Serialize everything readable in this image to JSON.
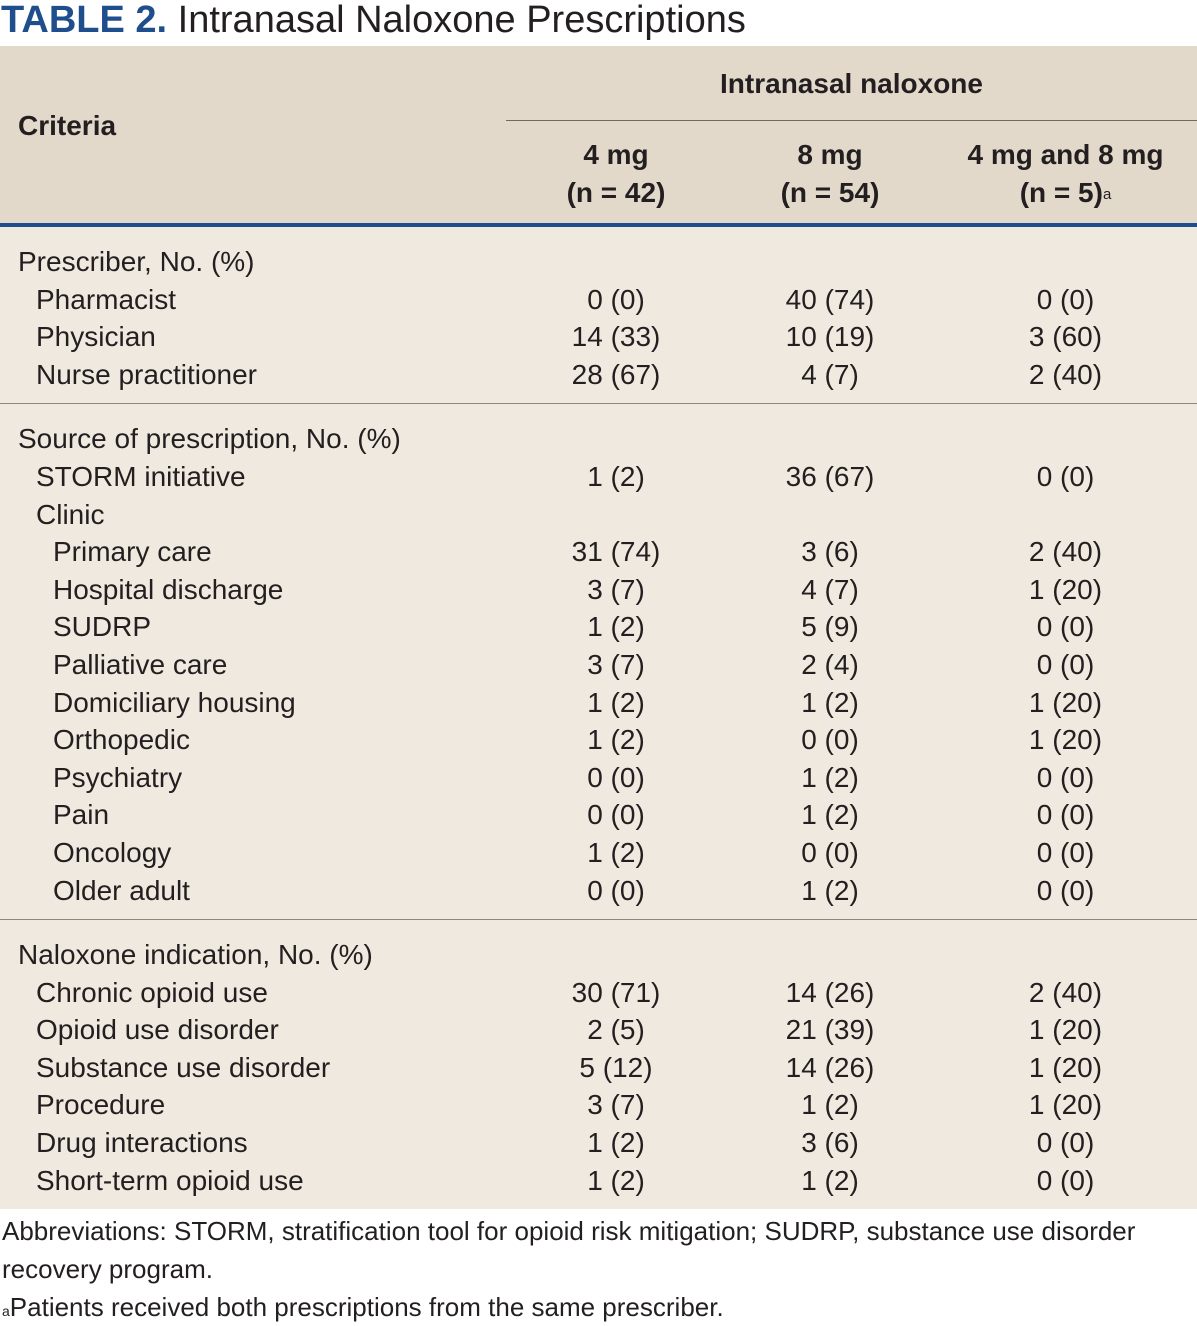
{
  "title": {
    "label": "TABLE 2.",
    "text": "Intranasal Naloxone Prescriptions"
  },
  "header": {
    "criteria": "Criteria",
    "group": "Intranasal naloxone",
    "columns": [
      {
        "line1": "4 mg",
        "line2": "(n = 42)",
        "note": ""
      },
      {
        "line1": "8 mg",
        "line2": "(n = 54)",
        "note": ""
      },
      {
        "line1": "4 mg and 8 mg",
        "line2": "(n = 5)",
        "note": "a"
      }
    ]
  },
  "sections": [
    {
      "heading": "Prescriber, No. (%)",
      "rows": [
        {
          "label": "Pharmacist",
          "level": 1,
          "values": [
            "0 (0)",
            "40 (74)",
            "0 (0)"
          ]
        },
        {
          "label": "Physician",
          "level": 1,
          "values": [
            "14 (33)",
            "10 (19)",
            "3 (60)"
          ]
        },
        {
          "label": "Nurse practitioner",
          "level": 1,
          "values": [
            "28 (67)",
            "4 (7)",
            "2 (40)"
          ]
        }
      ]
    },
    {
      "heading": "Source of prescription, No. (%)",
      "rows": [
        {
          "label": "STORM initiative",
          "level": 1,
          "values": [
            "1 (2)",
            "36 (67)",
            "0 (0)"
          ]
        },
        {
          "label": "Clinic",
          "level": 1,
          "values": [
            "",
            "",
            ""
          ]
        },
        {
          "label": "Primary care",
          "level": 2,
          "values": [
            "31 (74)",
            "3 (6)",
            "2 (40)"
          ]
        },
        {
          "label": "Hospital discharge",
          "level": 2,
          "values": [
            "3 (7)",
            "4 (7)",
            "1 (20)"
          ]
        },
        {
          "label": "SUDRP",
          "level": 2,
          "values": [
            "1 (2)",
            "5 (9)",
            "0 (0)"
          ]
        },
        {
          "label": "Palliative care",
          "level": 2,
          "values": [
            "3 (7)",
            "2 (4)",
            "0 (0)"
          ]
        },
        {
          "label": "Domiciliary housing",
          "level": 2,
          "values": [
            "1 (2)",
            "1 (2)",
            "1 (20)"
          ]
        },
        {
          "label": "Orthopedic",
          "level": 2,
          "values": [
            "1 (2)",
            "0 (0)",
            "1 (20)"
          ]
        },
        {
          "label": "Psychiatry",
          "level": 2,
          "values": [
            "0 (0)",
            "1 (2)",
            "0 (0)"
          ]
        },
        {
          "label": "Pain",
          "level": 2,
          "values": [
            "0 (0)",
            "1 (2)",
            "0 (0)"
          ]
        },
        {
          "label": "Oncology",
          "level": 2,
          "values": [
            "1 (2)",
            "0 (0)",
            "0 (0)"
          ]
        },
        {
          "label": "Older adult",
          "level": 2,
          "values": [
            "0 (0)",
            "1 (2)",
            "0 (0)"
          ]
        }
      ]
    },
    {
      "heading": "Naloxone indication, No. (%)",
      "rows": [
        {
          "label": "Chronic opioid use",
          "level": 1,
          "values": [
            "30 (71)",
            "14 (26)",
            "2 (40)"
          ]
        },
        {
          "label": "Opioid use disorder",
          "level": 1,
          "values": [
            "2 (5)",
            "21 (39)",
            "1 (20)"
          ]
        },
        {
          "label": "Substance use disorder",
          "level": 1,
          "values": [
            "5 (12)",
            "14 (26)",
            "1 (20)"
          ]
        },
        {
          "label": "Procedure",
          "level": 1,
          "values": [
            "3 (7)",
            "1 (2)",
            "1 (20)"
          ]
        },
        {
          "label": "Drug interactions",
          "level": 1,
          "values": [
            "1 (2)",
            "3 (6)",
            "0 (0)"
          ]
        },
        {
          "label": "Short-term opioid use",
          "level": 1,
          "values": [
            "1 (2)",
            "1 (2)",
            "0 (0)"
          ]
        }
      ]
    }
  ],
  "footnotes": {
    "abbreviations": "Abbreviations: STORM, stratification tool for opioid risk mitigation; SUDRP, substance use disorder recovery program.",
    "note_marker": "a",
    "note_text": "Patients received both prescriptions from the same prescriber."
  }
}
